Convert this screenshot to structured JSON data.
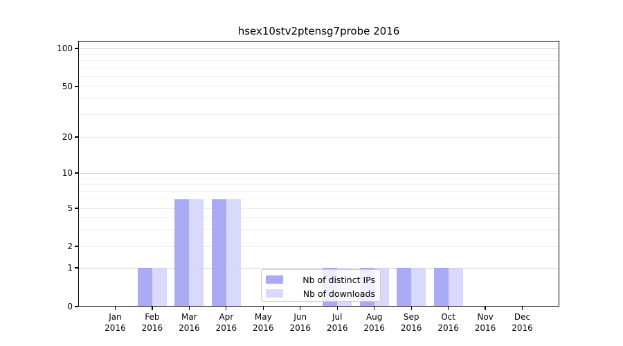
{
  "chart_data": {
    "type": "bar",
    "title": "hsex10stv2ptensg7probe 2016",
    "categories": [
      "Jan",
      "Feb",
      "Mar",
      "Apr",
      "May",
      "Jun",
      "Jul",
      "Aug",
      "Sep",
      "Oct",
      "Nov",
      "Dec"
    ],
    "x_year": "2016",
    "series": [
      {
        "name": "Nb of distinct IPs",
        "color": "rgba(150,150,242,0.8)",
        "values": [
          0,
          1,
          6,
          6,
          0,
          0,
          1,
          1,
          1,
          1,
          0,
          0
        ]
      },
      {
        "name": "Nb of downloads",
        "color": "rgba(208,208,250,0.8)",
        "values": [
          0,
          1,
          6,
          6,
          0,
          0,
          1,
          1,
          1,
          1,
          0,
          0
        ]
      }
    ],
    "yticks": [
      0,
      1,
      2,
      5,
      10,
      20,
      50,
      100
    ],
    "minor_yticks": [
      3,
      4,
      6,
      7,
      8,
      9,
      30,
      40,
      60,
      70,
      80,
      90
    ],
    "ylim": [
      0,
      100
    ],
    "yscale": "log-like (0,1,2,5,10,20,50,100)",
    "xlabel": "",
    "ylabel": "",
    "grid": "on",
    "legend_position": "lower-center-inside"
  },
  "colors": {
    "background": "#ffffff",
    "axis": "#000000",
    "grid_decade": "#cfcfcf",
    "grid_major": "#eaeaea",
    "grid_minor": "#f2f2f2",
    "legend_border": "#cccccc",
    "legend_bg": "rgba(255,255,255,0.8)"
  }
}
